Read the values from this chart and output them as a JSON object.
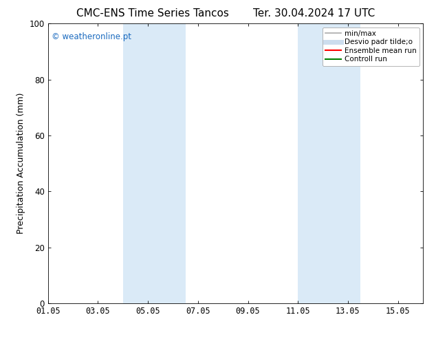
{
  "title_left": "CMC-ENS Time Series Tancos",
  "title_right": "Ter. 30.04.2024 17 UTC",
  "ylabel": "Precipitation Accumulation (mm)",
  "ylim": [
    0,
    100
  ],
  "yticks": [
    0,
    20,
    40,
    60,
    80,
    100
  ],
  "xtick_labels": [
    "01.05",
    "03.05",
    "05.05",
    "07.05",
    "09.05",
    "11.05",
    "13.05",
    "15.05"
  ],
  "xtick_positions": [
    0,
    2,
    4,
    6,
    8,
    10,
    12,
    14
  ],
  "xlim": [
    0,
    15
  ],
  "shaded_bands": [
    {
      "x_start": 3.0,
      "x_end": 5.5,
      "color": "#daeaf7"
    },
    {
      "x_start": 10.0,
      "x_end": 12.5,
      "color": "#daeaf7"
    }
  ],
  "watermark_text": "© weatheronline.pt",
  "watermark_color": "#1a6abf",
  "legend_items": [
    {
      "label": "min/max",
      "color": "#aaaaaa",
      "lw": 1.2,
      "style": "solid"
    },
    {
      "label": "Desvio padr tilde;o",
      "color": "#ccddee",
      "lw": 5,
      "style": "solid"
    },
    {
      "label": "Ensemble mean run",
      "color": "red",
      "lw": 1.5,
      "style": "solid"
    },
    {
      "label": "Controll run",
      "color": "green",
      "lw": 1.5,
      "style": "solid"
    }
  ],
  "bg_color": "#ffffff",
  "plot_bg_color": "#ffffff",
  "title_fontsize": 11,
  "label_fontsize": 9,
  "tick_fontsize": 8.5,
  "legend_fontsize": 7.5,
  "watermark_fontsize": 8.5
}
